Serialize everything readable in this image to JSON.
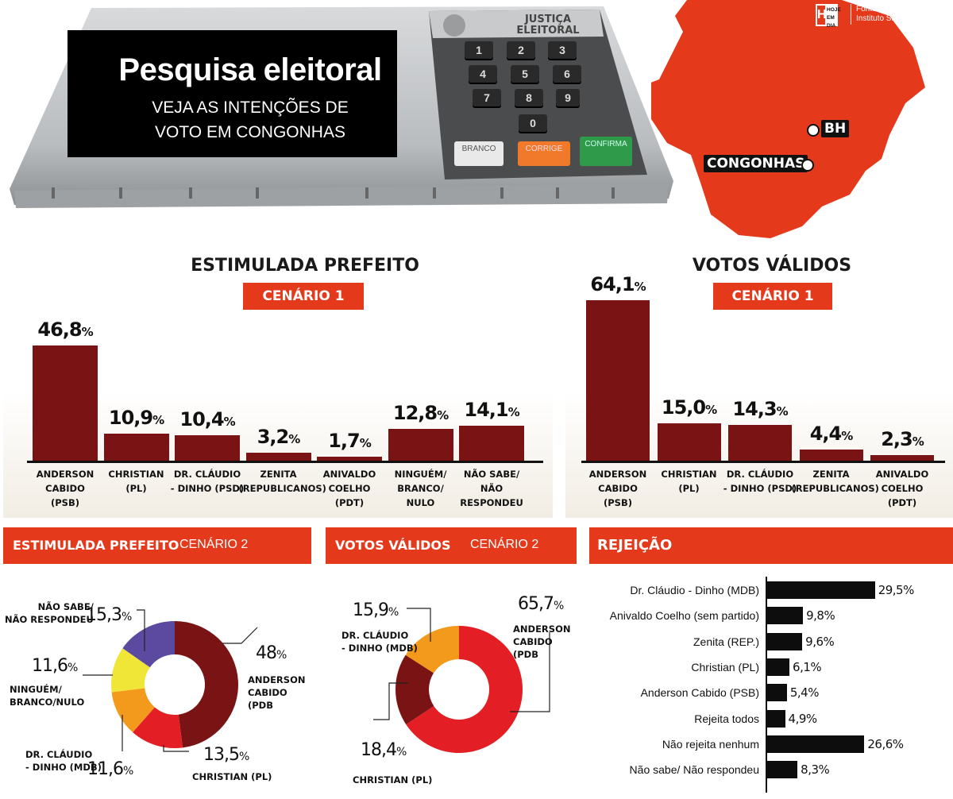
{
  "header": {
    "title": "Pesquisa eleitoral",
    "subtitle_line1": "VEJA AS INTENÇÕES DE",
    "subtitle_line2": "VOTO EM CONGONHAS",
    "machine_label_line1": "JUSTIÇA",
    "machine_label_line2": "ELEITORAL",
    "keys": [
      "1",
      "2",
      "3",
      "4",
      "5",
      "6",
      "7",
      "8",
      "9",
      "0"
    ],
    "button_branco": "BRANCO",
    "button_corrige": "CORRIGE",
    "button_confirma": "CONFIRMA",
    "map_city_bh": "BH",
    "map_city_congonhas": "CONGONHAS",
    "logo_line1": "HOJE",
    "logo_line2": "EM DIA",
    "source_line1": "Fonte:",
    "source_line2": "Instituto SigDados"
  },
  "colors": {
    "accent": "#e5391c",
    "bar": "#7a1414",
    "donut_red": "#e31e24",
    "donut_darkred": "#7a1414",
    "donut_orange": "#f39a1c",
    "donut_yellow": "#f0e637",
    "donut_purple": "#5b4aa0",
    "reject_bar": "#0d0d0d"
  },
  "panel1": {
    "title": "ESTIMULADA PREFEITO",
    "scenario": "CENÁRIO 1"
  },
  "panel2": {
    "title": "VOTOS VÁLIDOS",
    "scenario": "CENÁRIO 1"
  },
  "panel3": {
    "title": "ESTIMULADA PREFEITO",
    "scenario": "CENÁRIO 2"
  },
  "panel4": {
    "title": "VOTOS VÁLIDOS",
    "scenario": "CENÁRIO 2"
  },
  "panel5": {
    "title": "REJEIÇÃO"
  },
  "chart_data": [
    {
      "type": "bar",
      "title": "ESTIMULADA PREFEITO",
      "subtitle": "CENÁRIO 1",
      "categories": [
        [
          "ANDERSON",
          "CABIDO",
          "(PSB)"
        ],
        [
          "CHRISTIAN",
          "(PL)"
        ],
        [
          "DR. CLÁUDIO",
          "- DINHO (PSD)"
        ],
        [
          "ZENITA",
          "(REPUBLICANOS)"
        ],
        [
          "ANIVALDO",
          "COELHO",
          "(PDT)"
        ],
        [
          "NINGUÉM/",
          "BRANCO/",
          "NULO"
        ],
        [
          "NÃO SABE/",
          "NÃO",
          "RESPONDEU"
        ]
      ],
      "values": [
        46.8,
        10.9,
        10.4,
        3.2,
        1.7,
        12.8,
        14.1
      ],
      "labels": [
        "46,8",
        "10,9",
        "10,4",
        "3,2",
        "1,7",
        "12,8",
        "14,1"
      ],
      "unit": "%"
    },
    {
      "type": "bar",
      "title": "VOTOS VÁLIDOS",
      "subtitle": "CENÁRIO 1",
      "categories": [
        [
          "ANDERSON",
          "CABIDO",
          "(PSB)"
        ],
        [
          "CHRISTIAN",
          "(PL)"
        ],
        [
          "DR. CLÁUDIO",
          "- DINHO (PSD)"
        ],
        [
          "ZENITA",
          "(REPUBLICANOS)"
        ],
        [
          "ANIVALDO",
          "COELHO",
          "(PDT)"
        ]
      ],
      "values": [
        64.1,
        15.0,
        14.3,
        4.4,
        2.3
      ],
      "labels": [
        "64,1",
        "15,0",
        "14,3",
        "4,4",
        "2,3"
      ],
      "unit": "%"
    },
    {
      "type": "pie",
      "title": "ESTIMULADA PREFEITO",
      "subtitle": "CENÁRIO 2",
      "slices": [
        {
          "label": [
            "ANDERSON",
            "CABIDO (PDB"
          ],
          "value": 48,
          "text": "48",
          "color": "#7a1414"
        },
        {
          "label": [
            "CHRISTIAN (PL)"
          ],
          "value": 13.5,
          "text": "13,5",
          "color": "#e31e24"
        },
        {
          "label": [
            "DR. CLÁUDIO",
            "- DINHO (MDB)"
          ],
          "value": 11.6,
          "text": "11,6",
          "color": "#f39a1c"
        },
        {
          "label": [
            "NINGUÉM/",
            "BRANCO/NULO"
          ],
          "value": 11.6,
          "text": "11,6",
          "color": "#f0e637"
        },
        {
          "label": [
            "NÃO SABE/",
            "NÃO RESPONDEU"
          ],
          "value": 15.3,
          "text": "15,3",
          "color": "#5b4aa0"
        }
      ],
      "unit": "%"
    },
    {
      "type": "pie",
      "title": "VOTOS VÁLIDOS",
      "subtitle": "CENÁRIO 2",
      "slices": [
        {
          "label": [
            "ANDERSON",
            "CABIDO (PDB"
          ],
          "value": 65.7,
          "text": "65,7",
          "color": "#e31e24"
        },
        {
          "label": [
            "CHRISTIAN (PL)"
          ],
          "value": 18.4,
          "text": "18,4",
          "color": "#7a1414"
        },
        {
          "label": [
            "DR. CLÁUDIO",
            "- DINHO (MDB)"
          ],
          "value": 15.9,
          "text": "15,9",
          "color": "#f39a1c"
        }
      ],
      "unit": "%"
    },
    {
      "type": "bar",
      "orientation": "horizontal",
      "title": "REJEIÇÃO",
      "categories": [
        "Dr. Cláudio - Dinho (MDB)",
        "Anivaldo Coelho (sem partido)",
        "Zenita (REP.)",
        "Christian (PL)",
        "Anderson Cabido (PSB)",
        "Rejeita todos",
        "Não rejeita nenhum",
        "Não sabe/ Não respondeu"
      ],
      "values": [
        29.5,
        9.8,
        9.6,
        6.1,
        5.4,
        4.9,
        26.6,
        8.3
      ],
      "labels": [
        "29,5",
        "9,8",
        "9,6",
        "6,1",
        "5,4",
        "4,9",
        "26,6",
        "8,3"
      ],
      "unit": "%"
    }
  ]
}
